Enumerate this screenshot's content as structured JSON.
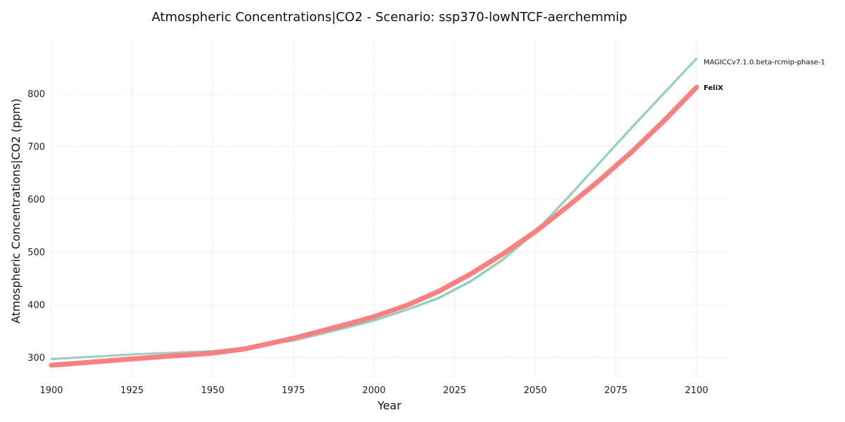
{
  "chart_data": {
    "type": "line",
    "title": "Atmospheric Concentrations|CO2 - Scenario: ssp370-lowNTCF-aerchemmip",
    "xlabel": "Year",
    "ylabel": "Atmospheric Concentrations|CO2 (ppm)",
    "xlim": [
      1900,
      2110
    ],
    "ylim": [
      260,
      900
    ],
    "xticks": [
      1900,
      1925,
      1950,
      1975,
      2000,
      2025,
      2050,
      2075,
      2100
    ],
    "yticks": [
      300,
      400,
      500,
      600,
      700,
      800
    ],
    "grid": true,
    "legend": "end-of-line labels",
    "x": [
      1900,
      1925,
      1950,
      1960,
      1975,
      1990,
      2000,
      2010,
      2020,
      2030,
      2040,
      2050,
      2060,
      2070,
      2080,
      2090,
      2100
    ],
    "series": [
      {
        "name": "MAGICCv7.1.0.beta-rcmip-phase-1",
        "color": "#7fc8a9",
        "width": 2,
        "values": [
          296,
          306,
          312,
          318,
          331,
          353,
          369,
          389,
          411,
          443,
          484,
          536,
          601,
          668,
          735,
          800,
          866
        ]
      },
      {
        "name": "",
        "color": "#76c7b7",
        "width": 2,
        "values": [
          296,
          305,
          311,
          318,
          332,
          354,
          370,
          390,
          412,
          444,
          485,
          537,
          602,
          669,
          736,
          801,
          866
        ]
      },
      {
        "name": "",
        "color": "#66b2a5",
        "width": 2,
        "values": [
          297,
          306,
          312,
          319,
          332,
          354,
          370,
          390,
          413,
          445,
          486,
          538,
          603,
          670,
          737,
          802,
          867
        ]
      },
      {
        "name": "",
        "color": "#8fd0b5",
        "width": 2,
        "values": [
          296,
          305,
          312,
          318,
          331,
          353,
          369,
          389,
          412,
          444,
          485,
          537,
          602,
          669,
          736,
          801,
          865
        ]
      },
      {
        "name": "",
        "color": "#9bd6c0",
        "width": 2,
        "values": [
          296,
          306,
          311,
          318,
          331,
          353,
          369,
          389,
          411,
          443,
          484,
          536,
          601,
          668,
          735,
          800,
          866
        ]
      },
      {
        "name": "FeliX",
        "color": "#ff7f7f",
        "width": 7,
        "values": [
          285,
          297,
          308,
          316,
          336,
          360,
          377,
          398,
          425,
          458,
          496,
          538,
          586,
          636,
          690,
          749,
          812
        ]
      }
    ],
    "end_labels": [
      {
        "text": "",
        "bold": true
      },
      {
        "text": "",
        "bold": true
      },
      {
        "text": "",
        "bold": true
      },
      {
        "text": "",
        "bold": true
      },
      {
        "text": "MAGICCv7.1.0.beta-rcmip-phase-1",
        "bold": false
      },
      {
        "text": "FeliX",
        "bold": true
      }
    ]
  }
}
